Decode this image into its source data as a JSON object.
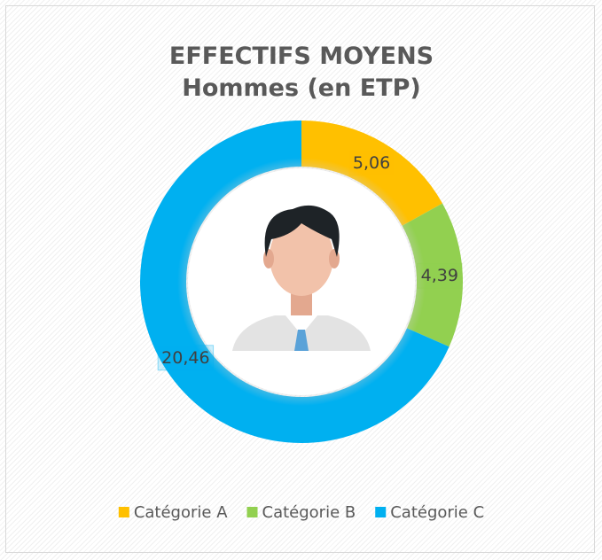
{
  "chart_data": {
    "type": "donut",
    "title": "EFFECTIFS MOYENS Hommes (en ETP)",
    "categories": [
      "Catégorie A",
      "Catégorie B",
      "Catégorie C"
    ],
    "values": [
      5.06,
      4.39,
      20.46
    ],
    "value_labels": [
      "5,06",
      "4,39",
      "20,46"
    ],
    "colors": [
      "#ffc000",
      "#92d050",
      "#00b0f0"
    ],
    "legend": "bottom"
  }
}
